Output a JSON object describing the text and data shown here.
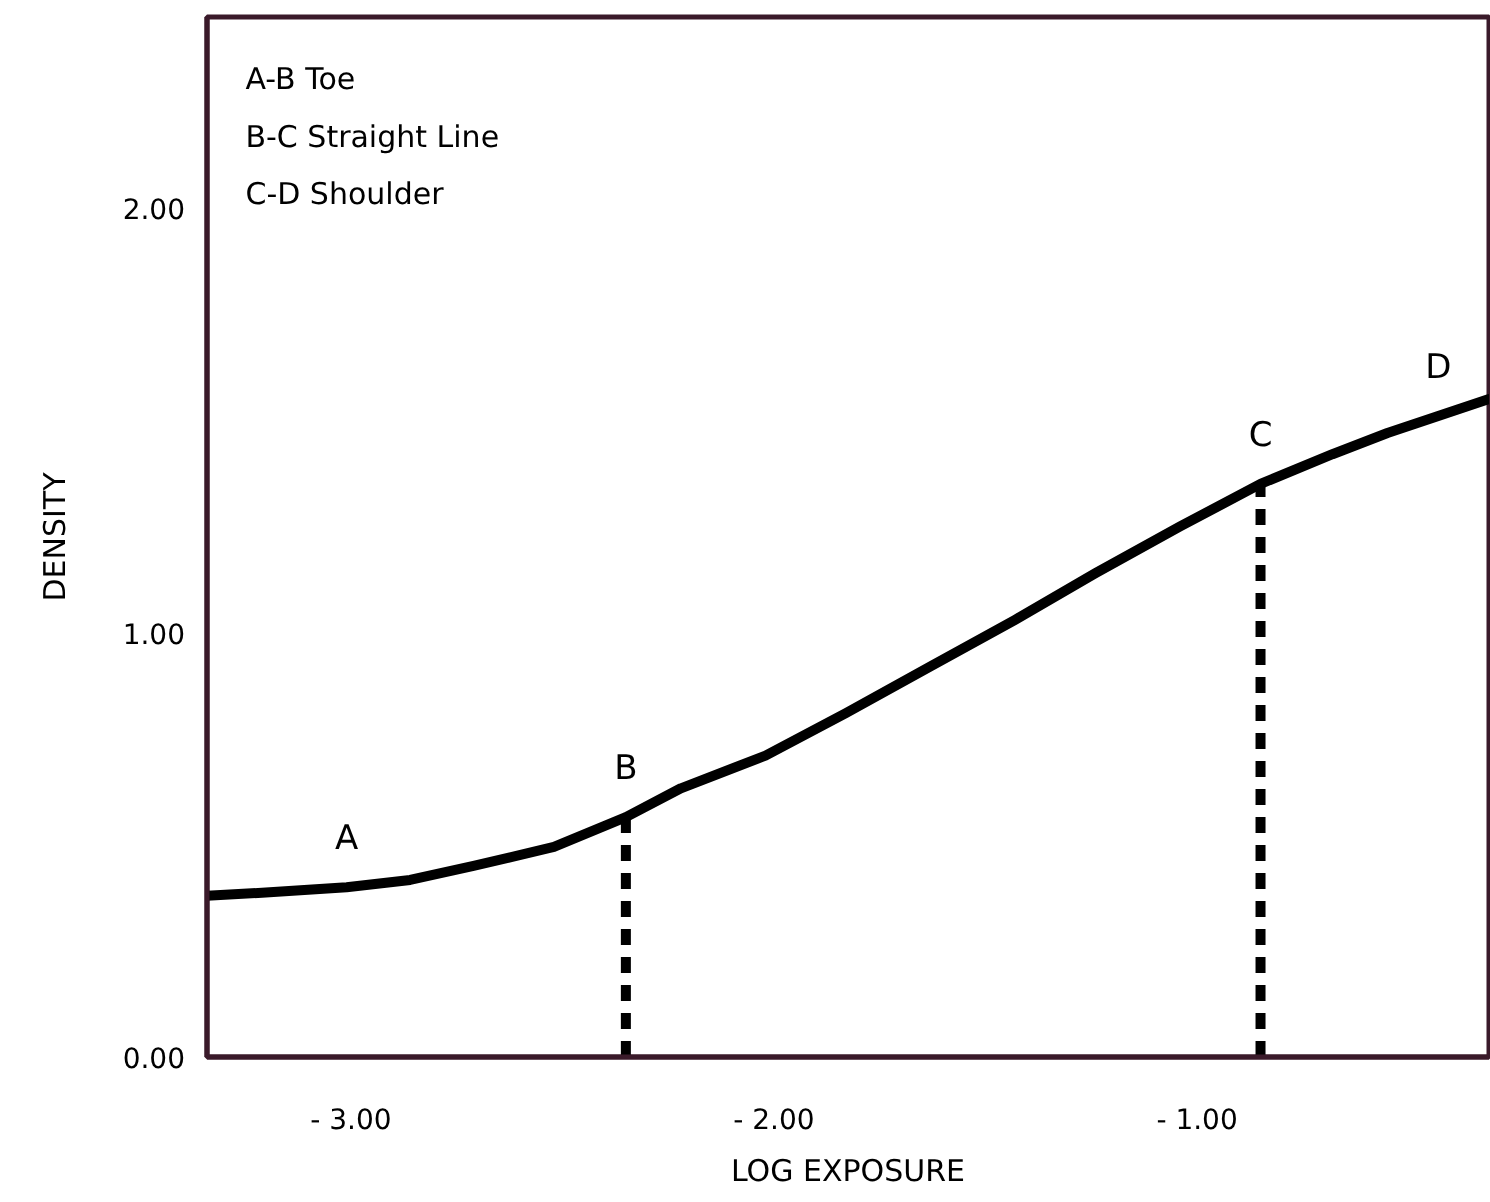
{
  "chart_data": {
    "type": "line",
    "xlabel": "LOG EXPOSURE",
    "ylabel": "DENSITY",
    "xlim": [
      -3.34,
      -0.31
    ],
    "ylim": [
      0,
      2.45
    ],
    "xticks": [
      {
        "value": -3,
        "label": "- 3.00"
      },
      {
        "value": -2,
        "label": "- 2.00"
      },
      {
        "value": -1,
        "label": "- 1.00"
      }
    ],
    "yticks": [
      {
        "value": 0,
        "label": "0.00"
      },
      {
        "value": 1,
        "label": "1.00"
      },
      {
        "value": 2,
        "label": "2.00"
      }
    ],
    "marker": "none",
    "series": [
      {
        "color": "#000000",
        "line_style": "solid",
        "x": [
          -3.34,
          -3.21,
          -3.01,
          -2.86,
          -2.71,
          -2.52,
          -2.35,
          -2.22,
          -2.02,
          -1.83,
          -1.63,
          -1.43,
          -1.24,
          -1.04,
          -0.85,
          -0.68,
          -0.55,
          -0.43,
          -0.31
        ],
        "values": [
          0.38,
          0.387,
          0.4,
          0.417,
          0.45,
          0.495,
          0.565,
          0.633,
          0.71,
          0.81,
          0.92,
          1.03,
          1.14,
          1.25,
          1.35,
          1.42,
          1.47,
          1.51,
          1.55
        ]
      },
      {
        "color": "#000000",
        "line_style": "dashed",
        "x": [
          -2.35,
          -2.35
        ],
        "values": [
          0,
          0.565
        ]
      },
      {
        "color": "#000000",
        "line_style": "dashed",
        "x": [
          -0.85,
          -0.85
        ],
        "values": [
          0,
          1.35
        ]
      }
    ],
    "annotations": [
      "A-B  Toe",
      "B-C Straight Line",
      "C-D Shoulder",
      {
        "text": "A",
        "x": -3.01,
        "y": 0.4
      },
      {
        "text": "B",
        "x": -2.35,
        "y": 0.565
      },
      {
        "text": "C",
        "x": -0.85,
        "y": 1.35
      },
      {
        "text": "D",
        "x": -0.43,
        "y": 1.51
      }
    ]
  }
}
